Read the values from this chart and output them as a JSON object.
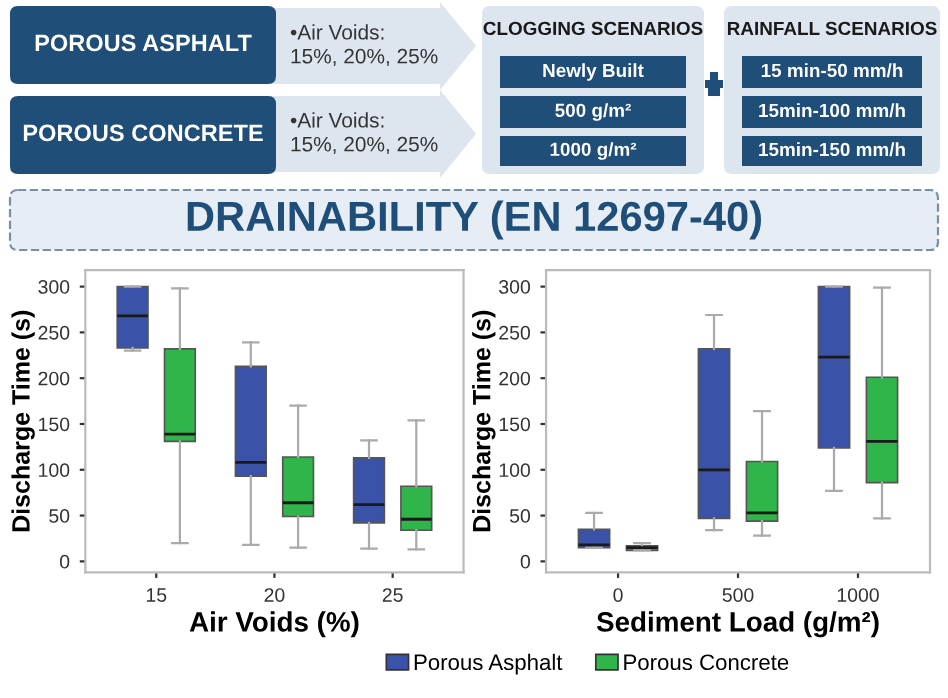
{
  "chart_data": [
    {
      "type": "other",
      "title": "DRAINABILITY (EN 12697-40)",
      "annotations": [
        "POROUS ASPHALT",
        "•Air Voids:\n15%, 20%, 25%",
        "POROUS CONCRETE",
        "•Air Voids:\n15%, 20%, 25%",
        "CLOGGING SCENARIOS",
        "Newly Built",
        "500 g/m²",
        "1000 g/m²",
        "RAINFALL SCENARIOS",
        "15 min-50 mm/h",
        "15min-100 mm/h",
        "15min-150 mm/h"
      ]
    },
    {
      "type": "box",
      "xlabel": "Air Voids (%)",
      "ylabel": "Discharge Time (s)",
      "categories": [
        "15",
        "20",
        "25"
      ],
      "ylim": [
        -12,
        318
      ],
      "yticks": [
        0,
        50,
        100,
        150,
        200,
        250,
        300
      ],
      "grid": false,
      "legend": "bottom",
      "series": [
        {
          "name": "Porous Asphalt",
          "color": "#3a52a8",
          "boxes": [
            {
              "low": 230,
              "q1": 233,
              "median": 268,
              "q3": 300,
              "high": 300
            },
            {
              "low": 18,
              "q1": 93,
              "median": 108,
              "q3": 213,
              "high": 239
            },
            {
              "low": 14,
              "q1": 42,
              "median": 62,
              "q3": 113,
              "high": 132
            }
          ]
        },
        {
          "name": "Porous Concrete",
          "color": "#2fb54a",
          "boxes": [
            {
              "low": 20,
              "q1": 131,
              "median": 139,
              "q3": 232,
              "high": 298
            },
            {
              "low": 15,
              "q1": 49,
              "median": 64,
              "q3": 114,
              "high": 170
            },
            {
              "low": 13,
              "q1": 34,
              "median": 46,
              "q3": 82,
              "high": 154
            }
          ]
        }
      ]
    },
    {
      "type": "box",
      "xlabel": "Sediment Load (g/m²)",
      "ylabel": "Discharge Time (s)",
      "categories": [
        "0",
        "500",
        "1000"
      ],
      "ylim": [
        -12,
        318
      ],
      "yticks": [
        0,
        50,
        100,
        150,
        200,
        250,
        300
      ],
      "grid": false,
      "legend": "bottom",
      "series": [
        {
          "name": "Porous Asphalt",
          "color": "#3a52a8",
          "boxes": [
            {
              "low": 15,
              "q1": 15,
              "median": 18,
              "q3": 35,
              "high": 53
            },
            {
              "low": 34,
              "q1": 47,
              "median": 100,
              "q3": 232,
              "high": 269
            },
            {
              "low": 77,
              "q1": 124,
              "median": 223,
              "q3": 300,
              "high": 300
            }
          ]
        },
        {
          "name": "Porous Concrete",
          "color": "#2fb54a",
          "boxes": [
            {
              "low": 12,
              "q1": 12,
              "median": 15,
              "q3": 17,
              "high": 20
            },
            {
              "low": 28,
              "q1": 44,
              "median": 53,
              "q3": 109,
              "high": 164
            },
            {
              "low": 47,
              "q1": 86,
              "median": 131,
              "q3": 201,
              "high": 299
            }
          ]
        }
      ]
    }
  ]
}
